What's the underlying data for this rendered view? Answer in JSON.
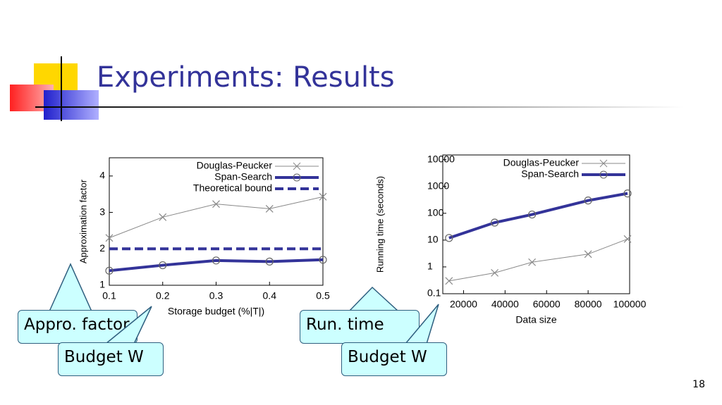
{
  "slide": {
    "title": "Experiments: Results",
    "page_number": "18",
    "callouts": [
      "Appro. factor",
      "Budget W",
      "Run. time",
      "Budget W"
    ]
  },
  "chart_data": [
    {
      "type": "line",
      "x_label": "Storage budget (%|T|)",
      "y_label": "Approximation factor",
      "x": [
        0.1,
        0.2,
        0.3,
        0.4,
        0.5
      ],
      "xlim": [
        0.1,
        0.5
      ],
      "xticks": [
        0.1,
        0.2,
        0.3,
        0.4,
        0.5
      ],
      "ylim": [
        1,
        4.5
      ],
      "yticks": [
        1,
        2,
        3,
        4
      ],
      "log_y": false,
      "legend": "top-right",
      "series": [
        {
          "name": "Douglas-Peucker",
          "color": "#888888",
          "marker": "x",
          "line_style": "solid",
          "values": [
            2.3,
            2.87,
            3.23,
            3.1,
            3.43
          ]
        },
        {
          "name": "Span-Search",
          "color": "#333399",
          "marker": "circle",
          "line_style": "solid",
          "values": [
            1.4,
            1.55,
            1.68,
            1.65,
            1.7
          ]
        },
        {
          "name": "Theoretical bound",
          "color": "#333399",
          "marker": "none",
          "line_style": "dashed",
          "values": [
            2,
            2,
            2,
            2,
            2
          ]
        }
      ]
    },
    {
      "type": "line",
      "x_label": "Data size",
      "y_label": "Running time (seconds)",
      "x": [
        13000,
        35000,
        53000,
        80000,
        99000
      ],
      "xlim": [
        10000,
        100000
      ],
      "xticks": [
        20000,
        40000,
        60000,
        80000,
        100000
      ],
      "ylim": [
        0.1,
        15000
      ],
      "yticks": [
        0.1,
        1,
        10,
        100,
        1000,
        10000
      ],
      "log_y": true,
      "legend": "top-right",
      "series": [
        {
          "name": "Douglas-Peucker",
          "color": "#888888",
          "marker": "x",
          "line_style": "solid",
          "values": [
            0.3,
            0.6,
            1.5,
            3,
            11
          ]
        },
        {
          "name": "Span-Search",
          "color": "#333399",
          "marker": "circle",
          "line_style": "solid",
          "values": [
            12,
            45,
            90,
            300,
            550
          ]
        }
      ]
    }
  ]
}
